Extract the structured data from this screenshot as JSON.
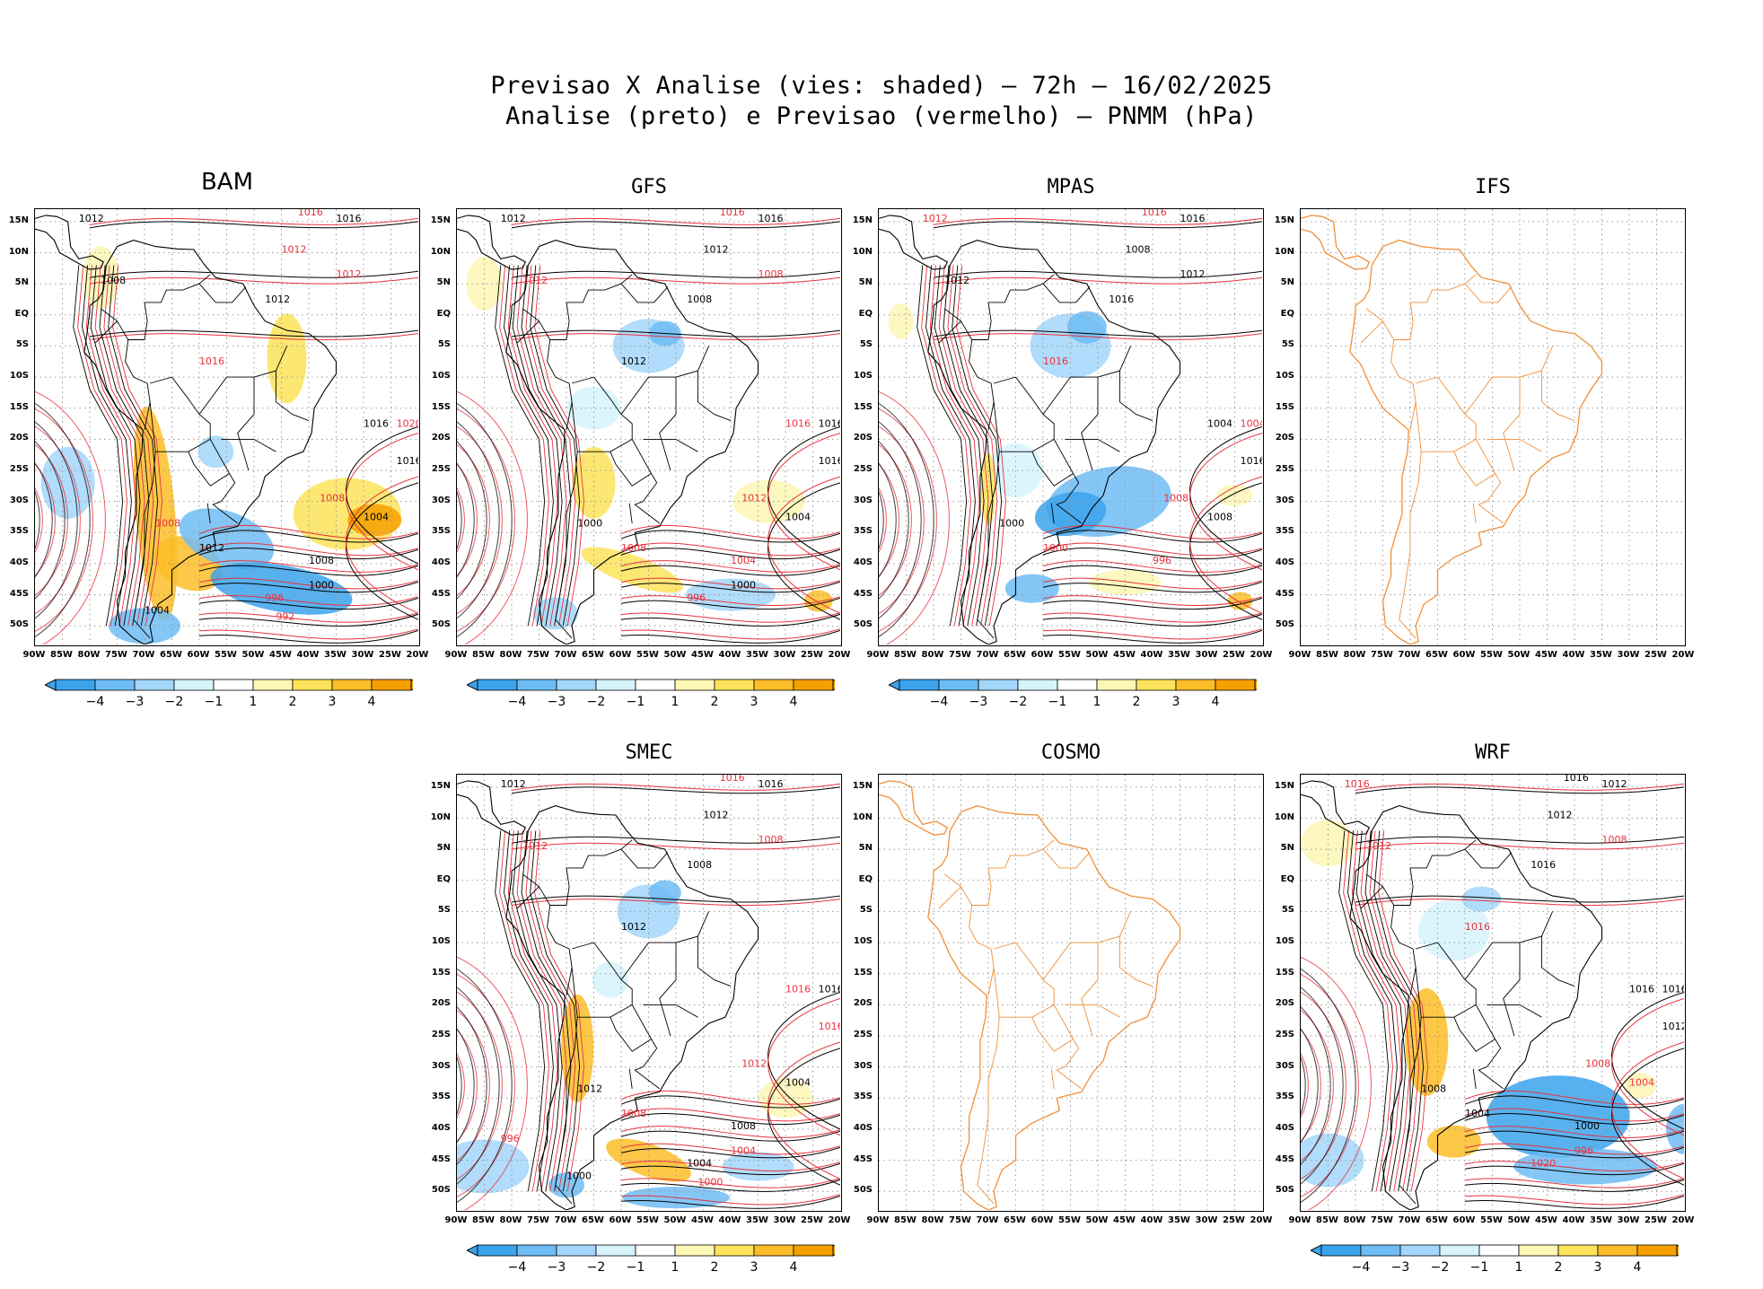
{
  "header": {
    "title_line1": "Previsao X Analise (vies: shaded) – 72h – 16/02/2025",
    "title_line2": "Analise (preto) e Previsao (vermelho) – PNMM (hPa)"
  },
  "axes": {
    "lat_labels": [
      "15N",
      "10N",
      "5N",
      "EQ",
      "5S",
      "10S",
      "15S",
      "20S",
      "25S",
      "30S",
      "35S",
      "40S",
      "45S",
      "50S"
    ],
    "lon_labels": [
      "90W",
      "85W",
      "80W",
      "75W",
      "70W",
      "65W",
      "60W",
      "55W",
      "50W",
      "45W",
      "40W",
      "35W",
      "30W",
      "25W",
      "20W"
    ]
  },
  "colorbar": {
    "labels": [
      "−4",
      "−3",
      "−2",
      "−1",
      "1",
      "2",
      "3",
      "4"
    ],
    "colors": [
      "#3ba3ec",
      "#6ebcf5",
      "#a3d6fa",
      "#d6f3fc",
      "#ffffff",
      "#fdf6b5",
      "#fde35a",
      "#fdbd28",
      "#f6a000"
    ]
  },
  "colors": {
    "analysis_isobar": "#000000",
    "forecast_isobar": "#e8323c",
    "empty_map_outline": "#f0903a",
    "grid": "#9a9a9a"
  },
  "panels": [
    {
      "name": "BAM",
      "has_data": true,
      "colorbar": true,
      "isobar_labels": [
        {
          "v": "1016",
          "c": "red"
        },
        {
          "v": "1016",
          "c": "black"
        },
        {
          "v": "1012",
          "c": "black"
        },
        {
          "v": "1008",
          "c": "black"
        },
        {
          "v": "1012",
          "c": "red"
        },
        {
          "v": "1012",
          "c": "red"
        },
        {
          "v": "1012",
          "c": "black"
        },
        {
          "v": "1016",
          "c": "red"
        },
        {
          "v": "1016",
          "c": "black"
        },
        {
          "v": "1020",
          "c": "red"
        },
        {
          "v": "1016",
          "c": "black"
        },
        {
          "v": "1008",
          "c": "red"
        },
        {
          "v": "1004",
          "c": "black"
        },
        {
          "v": "1008",
          "c": "red"
        },
        {
          "v": "1012",
          "c": "black"
        },
        {
          "v": "1008",
          "c": "black"
        },
        {
          "v": "1000",
          "c": "black"
        },
        {
          "v": "996",
          "c": "red"
        },
        {
          "v": "992",
          "c": "red"
        },
        {
          "v": "1004",
          "c": "black"
        }
      ]
    },
    {
      "name": "GFS",
      "has_data": true,
      "colorbar": true,
      "isobar_labels": [
        {
          "v": "1016",
          "c": "red"
        },
        {
          "v": "1016",
          "c": "black"
        },
        {
          "v": "1012",
          "c": "black"
        },
        {
          "v": "1012",
          "c": "red"
        },
        {
          "v": "1012",
          "c": "black"
        },
        {
          "v": "1008",
          "c": "red"
        },
        {
          "v": "1008",
          "c": "black"
        },
        {
          "v": "1012",
          "c": "black"
        },
        {
          "v": "1016",
          "c": "red"
        },
        {
          "v": "1016",
          "c": "black"
        },
        {
          "v": "1016",
          "c": "black"
        },
        {
          "v": "1012",
          "c": "red"
        },
        {
          "v": "1004",
          "c": "black"
        },
        {
          "v": "1000",
          "c": "black"
        },
        {
          "v": "1008",
          "c": "red"
        },
        {
          "v": "1004",
          "c": "red"
        },
        {
          "v": "1000",
          "c": "black"
        },
        {
          "v": "996",
          "c": "red"
        }
      ]
    },
    {
      "name": "MPAS",
      "has_data": true,
      "colorbar": true,
      "isobar_labels": [
        {
          "v": "1016",
          "c": "red"
        },
        {
          "v": "1016",
          "c": "black"
        },
        {
          "v": "1012",
          "c": "red"
        },
        {
          "v": "1012",
          "c": "black"
        },
        {
          "v": "1008",
          "c": "black"
        },
        {
          "v": "1012",
          "c": "black"
        },
        {
          "v": "1016",
          "c": "black"
        },
        {
          "v": "1016",
          "c": "red"
        },
        {
          "v": "1004",
          "c": "black"
        },
        {
          "v": "1004",
          "c": "red"
        },
        {
          "v": "1016",
          "c": "black"
        },
        {
          "v": "1008",
          "c": "red"
        },
        {
          "v": "1008",
          "c": "black"
        },
        {
          "v": "1000",
          "c": "black"
        },
        {
          "v": "1000",
          "c": "red"
        },
        {
          "v": "996",
          "c": "red"
        }
      ]
    },
    {
      "name": "IFS",
      "has_data": false,
      "colorbar": false,
      "isobar_labels": []
    },
    {
      "name": "SMEC",
      "has_data": true,
      "colorbar": true,
      "isobar_labels": [
        {
          "v": "1016",
          "c": "red"
        },
        {
          "v": "1016",
          "c": "black"
        },
        {
          "v": "1012",
          "c": "black"
        },
        {
          "v": "1012",
          "c": "red"
        },
        {
          "v": "1012",
          "c": "black"
        },
        {
          "v": "1008",
          "c": "red"
        },
        {
          "v": "1008",
          "c": "black"
        },
        {
          "v": "1012",
          "c": "black"
        },
        {
          "v": "1016",
          "c": "red"
        },
        {
          "v": "1016",
          "c": "black"
        },
        {
          "v": "1016",
          "c": "red"
        },
        {
          "v": "1012",
          "c": "red"
        },
        {
          "v": "1004",
          "c": "black"
        },
        {
          "v": "1012",
          "c": "black"
        },
        {
          "v": "1008",
          "c": "red"
        },
        {
          "v": "1008",
          "c": "black"
        },
        {
          "v": "1004",
          "c": "red"
        },
        {
          "v": "1004",
          "c": "black"
        },
        {
          "v": "1000",
          "c": "red"
        },
        {
          "v": "1000",
          "c": "black"
        },
        {
          "v": "996",
          "c": "red"
        }
      ]
    },
    {
      "name": "COSMO",
      "has_data": false,
      "colorbar": false,
      "isobar_labels": []
    },
    {
      "name": "WRF",
      "has_data": true,
      "colorbar": true,
      "isobar_labels": [
        {
          "v": "1016",
          "c": "black"
        },
        {
          "v": "1012",
          "c": "black"
        },
        {
          "v": "1016",
          "c": "red"
        },
        {
          "v": "1012",
          "c": "red"
        },
        {
          "v": "1012",
          "c": "black"
        },
        {
          "v": "1008",
          "c": "red"
        },
        {
          "v": "1016",
          "c": "black"
        },
        {
          "v": "1016",
          "c": "red"
        },
        {
          "v": "1016",
          "c": "black"
        },
        {
          "v": "1016",
          "c": "black"
        },
        {
          "v": "1012",
          "c": "black"
        },
        {
          "v": "1008",
          "c": "red"
        },
        {
          "v": "1004",
          "c": "red"
        },
        {
          "v": "1008",
          "c": "black"
        },
        {
          "v": "1004",
          "c": "black"
        },
        {
          "v": "1000",
          "c": "black"
        },
        {
          "v": "996",
          "c": "red"
        },
        {
          "v": "1020",
          "c": "red"
        }
      ]
    }
  ]
}
